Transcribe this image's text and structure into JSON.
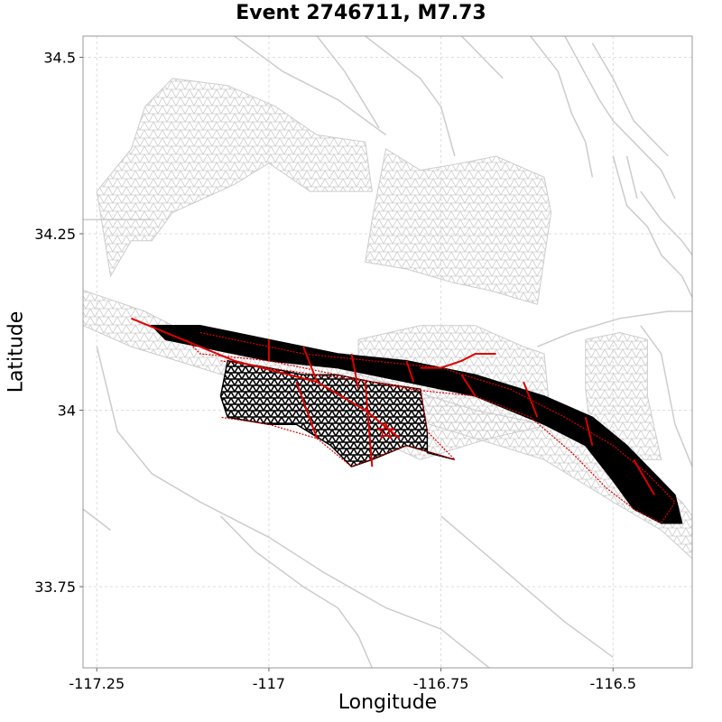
{
  "chart_data": {
    "type": "map",
    "title": "Event 2746711, M7.73",
    "xlabel": "Longitude",
    "ylabel": "Latitude",
    "xlim": [
      -117.27,
      -116.385
    ],
    "ylim": [
      33.635,
      34.53
    ],
    "grid": true,
    "x_ticks": [
      {
        "value": -117.25,
        "label": "-117.25"
      },
      {
        "value": -117.0,
        "label": "-117"
      },
      {
        "value": -116.75,
        "label": "-116.75"
      },
      {
        "value": -116.5,
        "label": "-116.5"
      }
    ],
    "y_ticks": [
      {
        "value": 34.5,
        "label": "34.5"
      },
      {
        "value": 34.25,
        "label": "34.25"
      },
      {
        "value": 34.0,
        "label": "34"
      },
      {
        "value": 33.75,
        "label": "33.75"
      }
    ],
    "colors": {
      "background_faults": "#cccccc",
      "ruptured_mesh": "#000000",
      "rupture_outline": "#dd0000",
      "grid": "#dddddd"
    },
    "background_meshes": [
      [
        [
          -117.25,
          34.31
        ],
        [
          -117.2,
          34.37
        ],
        [
          -117.18,
          34.43
        ],
        [
          -117.14,
          34.47
        ],
        [
          -117.06,
          34.46
        ],
        [
          -116.99,
          34.43
        ],
        [
          -116.93,
          34.39
        ],
        [
          -116.86,
          34.38
        ],
        [
          -116.85,
          34.31
        ],
        [
          -116.94,
          34.31
        ],
        [
          -117.0,
          34.35
        ],
        [
          -117.05,
          34.32
        ],
        [
          -117.14,
          34.28
        ],
        [
          -117.17,
          34.24
        ],
        [
          -117.2,
          34.24
        ],
        [
          -117.23,
          34.19
        ]
      ],
      [
        [
          -116.83,
          34.37
        ],
        [
          -116.78,
          34.34
        ],
        [
          -116.72,
          34.35
        ],
        [
          -116.67,
          34.36
        ],
        [
          -116.6,
          34.33
        ],
        [
          -116.59,
          34.28
        ],
        [
          -116.61,
          34.15
        ],
        [
          -116.68,
          34.17
        ],
        [
          -116.73,
          34.18
        ],
        [
          -116.8,
          34.2
        ],
        [
          -116.86,
          34.21
        ],
        [
          -116.85,
          34.27
        ]
      ],
      [
        [
          -117.27,
          34.17
        ],
        [
          -117.18,
          34.14
        ],
        [
          -117.12,
          34.11
        ],
        [
          -117.0,
          34.09
        ],
        [
          -116.9,
          34.06
        ],
        [
          -116.8,
          34.03
        ],
        [
          -116.7,
          34.0
        ],
        [
          -116.6,
          33.98
        ],
        [
          -116.5,
          33.94
        ],
        [
          -116.44,
          33.9
        ],
        [
          -116.4,
          33.87
        ],
        [
          -116.385,
          33.85
        ],
        [
          -116.385,
          33.79
        ],
        [
          -116.43,
          33.83
        ],
        [
          -116.5,
          33.87
        ],
        [
          -116.6,
          33.93
        ],
        [
          -116.7,
          33.96
        ],
        [
          -116.8,
          33.99
        ],
        [
          -116.9,
          34.01
        ],
        [
          -117.0,
          34.03
        ],
        [
          -117.1,
          34.06
        ],
        [
          -117.2,
          34.09
        ],
        [
          -117.27,
          34.12
        ]
      ],
      [
        [
          -116.87,
          34.1
        ],
        [
          -116.78,
          34.12
        ],
        [
          -116.7,
          34.12
        ],
        [
          -116.63,
          34.09
        ],
        [
          -116.6,
          34.08
        ],
        [
          -116.59,
          33.98
        ],
        [
          -116.68,
          33.96
        ],
        [
          -116.78,
          33.93
        ],
        [
          -116.87,
          33.97
        ]
      ],
      [
        [
          -116.54,
          34.1
        ],
        [
          -116.49,
          34.11
        ],
        [
          -116.45,
          34.1
        ],
        [
          -116.45,
          34.02
        ],
        [
          -116.43,
          33.93
        ],
        [
          -116.48,
          33.93
        ],
        [
          -116.53,
          33.95
        ],
        [
          -116.54,
          34.03
        ]
      ]
    ],
    "background_faults": [
      [
        [
          -117.05,
          34.53
        ],
        [
          -116.98,
          34.48
        ],
        [
          -116.9,
          34.44
        ],
        [
          -116.83,
          34.39
        ]
      ],
      [
        [
          -116.93,
          34.53
        ],
        [
          -116.89,
          34.48
        ],
        [
          -116.84,
          34.4
        ]
      ],
      [
        [
          -116.86,
          34.53
        ],
        [
          -116.78,
          34.47
        ],
        [
          -116.75,
          34.43
        ],
        [
          -116.73,
          34.36
        ]
      ],
      [
        [
          -116.72,
          34.53
        ],
        [
          -116.66,
          34.47
        ]
      ],
      [
        [
          -116.62,
          34.53
        ],
        [
          -116.58,
          34.48
        ],
        [
          -116.56,
          34.42
        ],
        [
          -116.54,
          34.38
        ],
        [
          -116.53,
          34.33
        ]
      ],
      [
        [
          -116.57,
          34.53
        ],
        [
          -116.52,
          34.44
        ],
        [
          -116.5,
          34.41
        ],
        [
          -116.47,
          34.38
        ],
        [
          -116.43,
          34.34
        ],
        [
          -116.41,
          34.3
        ]
      ],
      [
        [
          -116.53,
          34.52
        ],
        [
          -116.5,
          34.47
        ],
        [
          -116.47,
          34.41
        ],
        [
          -116.42,
          34.36
        ]
      ],
      [
        [
          -116.5,
          34.36
        ],
        [
          -116.48,
          34.29
        ],
        [
          -116.45,
          34.26
        ],
        [
          -116.43,
          34.22
        ],
        [
          -116.4,
          34.19
        ],
        [
          -116.385,
          34.16
        ]
      ],
      [
        [
          -116.48,
          34.36
        ],
        [
          -116.465,
          34.3
        ]
      ],
      [
        [
          -116.46,
          34.31
        ],
        [
          -116.43,
          34.27
        ],
        [
          -116.4,
          34.24
        ],
        [
          -116.385,
          34.22
        ]
      ],
      [
        [
          -116.61,
          34.09
        ],
        [
          -116.56,
          34.11
        ],
        [
          -116.49,
          34.13
        ],
        [
          -116.42,
          34.14
        ],
        [
          -116.385,
          34.14
        ]
      ],
      [
        [
          -116.46,
          34.12
        ],
        [
          -116.43,
          34.08
        ],
        [
          -116.41,
          33.98
        ],
        [
          -116.385,
          33.92
        ]
      ],
      [
        [
          -117.27,
          34.27
        ],
        [
          -117.22,
          34.27
        ],
        [
          -117.17,
          34.27
        ]
      ],
      [
        [
          -117.25,
          34.09
        ],
        [
          -117.22,
          33.97
        ],
        [
          -117.17,
          33.91
        ],
        [
          -117.1,
          33.87
        ],
        [
          -117.0,
          33.82
        ],
        [
          -116.92,
          33.77
        ],
        [
          -116.83,
          33.72
        ],
        [
          -116.75,
          33.69
        ],
        [
          -116.68,
          33.635
        ]
      ],
      [
        [
          -117.07,
          33.85
        ],
        [
          -117.02,
          33.8
        ],
        [
          -116.95,
          33.75
        ],
        [
          -116.9,
          33.72
        ],
        [
          -116.87,
          33.68
        ],
        [
          -116.85,
          33.635
        ]
      ],
      [
        [
          -116.75,
          33.85
        ],
        [
          -116.69,
          33.8
        ],
        [
          -116.63,
          33.75
        ],
        [
          -116.57,
          33.7
        ],
        [
          -116.5,
          33.65
        ]
      ],
      [
        [
          -117.27,
          33.86
        ],
        [
          -117.23,
          33.83
        ]
      ]
    ],
    "rupture_fill": [
      [
        [
          -117.15,
          34.1
        ],
        [
          -117.1,
          34.09
        ],
        [
          -117.0,
          34.07
        ],
        [
          -116.9,
          34.06
        ],
        [
          -116.8,
          34.04
        ],
        [
          -116.7,
          34.02
        ],
        [
          -116.6,
          33.98
        ],
        [
          -116.54,
          33.95
        ],
        [
          -116.5,
          33.9
        ],
        [
          -116.47,
          33.86
        ],
        [
          -116.43,
          33.84
        ],
        [
          -116.4,
          33.84
        ],
        [
          -116.41,
          33.88
        ],
        [
          -116.44,
          33.91
        ],
        [
          -116.48,
          33.95
        ],
        [
          -116.53,
          33.99
        ],
        [
          -116.6,
          34.02
        ],
        [
          -116.7,
          34.05
        ],
        [
          -116.8,
          34.07
        ],
        [
          -116.9,
          34.08
        ],
        [
          -117.0,
          34.1
        ],
        [
          -117.1,
          34.12
        ],
        [
          -117.14,
          34.12
        ],
        [
          -117.17,
          34.12
        ]
      ],
      [
        [
          -117.06,
          34.07
        ],
        [
          -117.0,
          34.06
        ],
        [
          -116.95,
          34.05
        ],
        [
          -116.9,
          34.05
        ],
        [
          -116.85,
          34.04
        ],
        [
          -116.78,
          34.03
        ],
        [
          -116.77,
          33.97
        ],
        [
          -116.77,
          33.94
        ],
        [
          -116.73,
          33.93
        ],
        [
          -116.8,
          33.95
        ],
        [
          -116.85,
          33.93
        ],
        [
          -116.88,
          33.92
        ],
        [
          -116.91,
          33.95
        ],
        [
          -116.96,
          33.98
        ],
        [
          -117.0,
          33.98
        ],
        [
          -117.06,
          33.99
        ],
        [
          -117.07,
          34.02
        ]
      ]
    ],
    "rupture_outlines": [
      [
        [
          -117.12,
          34.1
        ],
        [
          -117.1,
          34.08
        ],
        [
          -117.0,
          34.07
        ],
        [
          -116.95,
          34.06
        ],
        [
          -116.85,
          34.04
        ],
        [
          -116.8,
          34.03
        ],
        [
          -116.7,
          34.02
        ],
        [
          -116.62,
          33.99
        ],
        [
          -116.56,
          33.94
        ],
        [
          -116.51,
          33.89
        ],
        [
          -116.47,
          33.86
        ],
        [
          -116.43,
          33.84
        ],
        [
          -116.41,
          33.87
        ],
        [
          -116.45,
          33.91
        ],
        [
          -116.5,
          33.95
        ],
        [
          -116.57,
          33.99
        ],
        [
          -116.65,
          34.03
        ],
        [
          -116.75,
          34.06
        ],
        [
          -116.85,
          34.07
        ],
        [
          -116.95,
          34.08
        ],
        [
          -117.05,
          34.1
        ],
        [
          -117.1,
          34.11
        ]
      ],
      [
        [
          -117.07,
          34.07
        ],
        [
          -117.0,
          34.06
        ],
        [
          -116.93,
          34.05
        ],
        [
          -116.85,
          34.04
        ],
        [
          -116.78,
          34.03
        ],
        [
          -116.77,
          33.97
        ],
        [
          -116.73,
          33.93
        ],
        [
          -116.8,
          33.95
        ],
        [
          -116.88,
          33.92
        ],
        [
          -116.93,
          33.96
        ],
        [
          -117.0,
          33.98
        ],
        [
          -117.07,
          33.99
        ]
      ],
      [
        [
          -117.2,
          34.13
        ],
        [
          -117.05,
          34.07
        ],
        [
          -116.93,
          34.04
        ],
        [
          -116.86,
          34.0
        ],
        [
          -116.81,
          33.96
        ]
      ],
      [
        [
          -116.78,
          34.06
        ],
        [
          -116.75,
          34.06
        ],
        [
          -116.72,
          34.07
        ],
        [
          -116.7,
          34.08
        ],
        [
          -116.67,
          34.08
        ]
      ],
      [
        [
          -117.0,
          34.1
        ],
        [
          -117.0,
          34.07
        ]
      ],
      [
        [
          -116.95,
          34.09
        ],
        [
          -116.93,
          34.04
        ]
      ],
      [
        [
          -116.88,
          34.08
        ],
        [
          -116.87,
          34.03
        ]
      ],
      [
        [
          -116.8,
          34.07
        ],
        [
          -116.79,
          34.04
        ]
      ],
      [
        [
          -116.72,
          34.05
        ],
        [
          -116.7,
          34.02
        ]
      ],
      [
        [
          -116.63,
          34.04
        ],
        [
          -116.61,
          33.99
        ]
      ],
      [
        [
          -116.54,
          33.99
        ],
        [
          -116.53,
          33.95
        ]
      ],
      [
        [
          -116.47,
          33.93
        ],
        [
          -116.44,
          33.88
        ]
      ],
      [
        [
          -116.96,
          34.04
        ],
        [
          -116.93,
          33.96
        ]
      ],
      [
        [
          -116.86,
          34.04
        ],
        [
          -116.85,
          33.92
        ]
      ]
    ],
    "epicenter": {
      "lon": -116.83,
      "lat": 33.97
    }
  }
}
